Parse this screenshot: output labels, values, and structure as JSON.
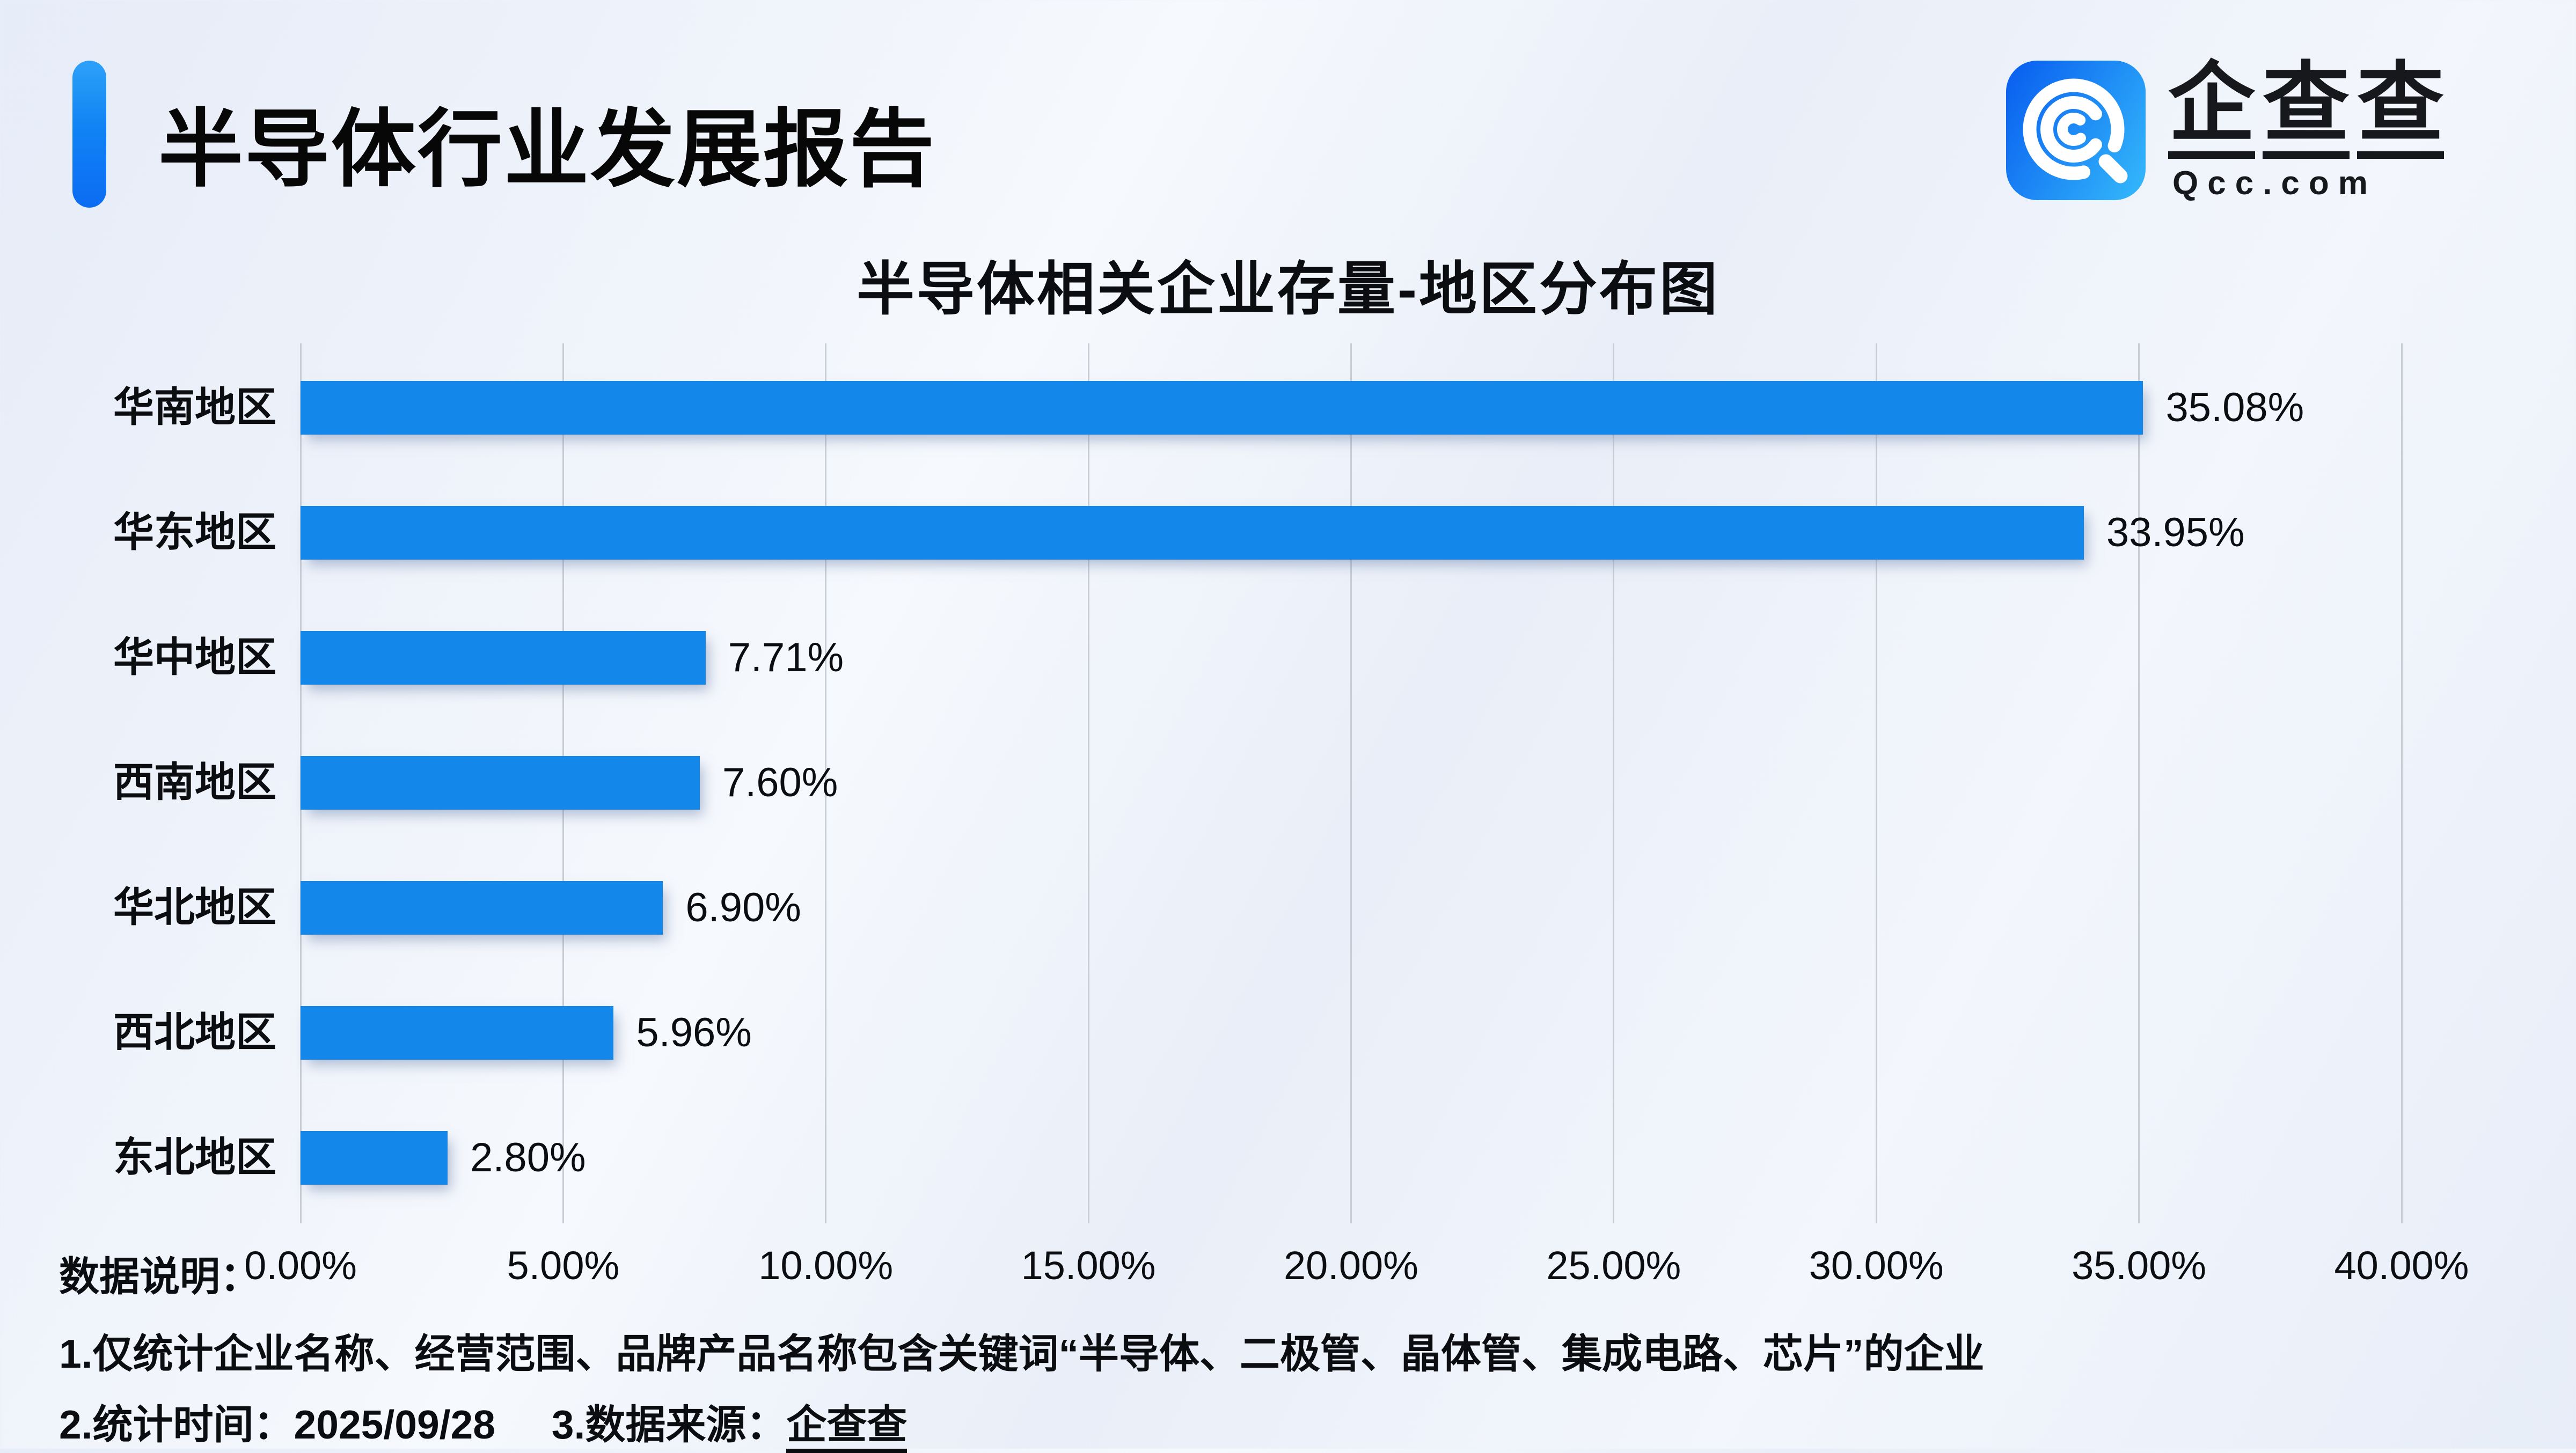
{
  "header": {
    "title": "半导体行业发展报告",
    "accent_color_top": "#2da1f8",
    "accent_color_bottom": "#0b6cf3"
  },
  "logo": {
    "brand_chars": [
      "企",
      "查",
      "查"
    ],
    "domain": "Qcc.com",
    "icon": "qcc-magnifier-q-icon",
    "icon_gradient_start": "#0b63f0",
    "icon_gradient_end": "#31b3fa",
    "text_color": "#17181c"
  },
  "chart_data": {
    "type": "bar",
    "orientation": "horizontal",
    "title": "半导体相关企业存量-地区分布图",
    "categories": [
      "华南地区",
      "华东地区",
      "华中地区",
      "西南地区",
      "华北地区",
      "西北地区",
      "东北地区"
    ],
    "values": [
      35.08,
      33.95,
      7.71,
      7.6,
      6.9,
      5.96,
      2.8
    ],
    "value_labels": [
      "35.08%",
      "33.95%",
      "7.71%",
      "7.60%",
      "6.90%",
      "5.96%",
      "2.80%"
    ],
    "xlim": [
      0,
      40
    ],
    "x_ticks": [
      "0.00%",
      "5.00%",
      "10.00%",
      "15.00%",
      "20.00%",
      "25.00%",
      "30.00%",
      "35.00%",
      "40.00%"
    ],
    "bar_color": "#1487ea",
    "gridline_color": "#c8ccd4",
    "grid": true,
    "legend": false
  },
  "footnotes": {
    "label": "数据说明：",
    "note1": "1.仅统计企业名称、经营范围、品牌产品名称包含关键词“半导体、二极管、晶体管、集成电路、芯片”的企业",
    "note2_time": "2.统计时间：2025/09/28",
    "note3_source_label": "3.数据来源：",
    "note3_source": "企查查"
  }
}
